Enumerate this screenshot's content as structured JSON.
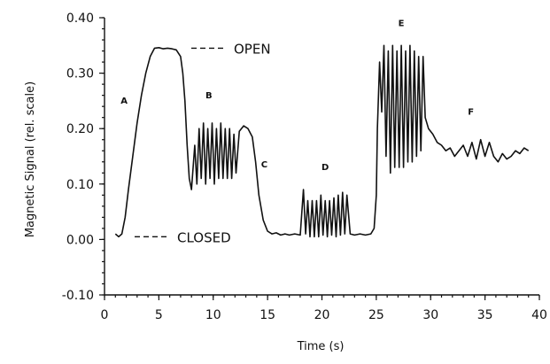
{
  "chart_data": {
    "type": "line",
    "title": "",
    "xlabel": "Time (s)",
    "ylabel": "Magnetic Signal (rel. scale)",
    "xlim": [
      0,
      40
    ],
    "ylim": [
      -0.1,
      0.4
    ],
    "x_ticks": [
      0,
      5,
      10,
      15,
      20,
      25,
      30,
      35,
      40
    ],
    "x_tick_labels": [
      "0",
      "5",
      "10",
      "15",
      "20",
      "25",
      "30",
      "35",
      "40"
    ],
    "y_ticks": [
      -0.1,
      0.0,
      0.1,
      0.2,
      0.3,
      0.4
    ],
    "y_tick_labels": [
      "-0.10",
      "0.00",
      "0.10",
      "0.20",
      "0.30",
      "0.40"
    ],
    "grid": false,
    "series": [
      {
        "x": [
          1.0,
          1.3,
          1.6,
          1.9,
          2.2,
          2.6,
          3.0,
          3.4,
          3.8,
          4.2,
          4.6,
          5.0,
          5.4,
          5.8,
          6.2,
          6.6,
          7.0,
          7.2,
          7.4,
          7.6,
          7.8,
          8.0,
          8.3,
          8.5,
          8.7,
          8.9,
          9.1,
          9.3,
          9.5,
          9.7,
          9.9,
          10.1,
          10.3,
          10.5,
          10.7,
          10.9,
          11.1,
          11.3,
          11.5,
          11.7,
          11.9,
          12.1,
          12.4,
          12.8,
          13.2,
          13.6,
          13.9,
          14.2,
          14.6,
          15.0,
          15.4,
          15.8,
          16.2,
          16.6,
          17.0,
          17.5,
          18.0,
          18.3,
          18.5,
          18.7,
          18.9,
          19.1,
          19.3,
          19.5,
          19.7,
          19.9,
          20.1,
          20.3,
          20.5,
          20.7,
          20.9,
          21.1,
          21.3,
          21.5,
          21.7,
          21.9,
          22.1,
          22.3,
          22.6,
          23.0,
          23.5,
          24.0,
          24.5,
          24.8,
          25.0,
          25.1,
          25.3,
          25.5,
          25.7,
          25.9,
          26.1,
          26.3,
          26.5,
          26.7,
          26.9,
          27.1,
          27.3,
          27.5,
          27.7,
          27.9,
          28.1,
          28.3,
          28.5,
          28.7,
          28.9,
          29.1,
          29.3,
          29.5,
          29.8,
          30.2,
          30.6,
          31.0,
          31.4,
          31.8,
          32.2,
          32.6,
          33.0,
          33.4,
          33.8,
          34.2,
          34.6,
          35.0,
          35.4,
          35.8,
          36.2,
          36.6,
          37.0,
          37.4,
          37.8,
          38.2,
          38.6,
          39.0
        ],
        "y": [
          0.01,
          0.005,
          0.01,
          0.04,
          0.09,
          0.15,
          0.21,
          0.26,
          0.3,
          0.33,
          0.345,
          0.346,
          0.344,
          0.345,
          0.344,
          0.342,
          0.33,
          0.3,
          0.25,
          0.17,
          0.11,
          0.09,
          0.17,
          0.1,
          0.2,
          0.11,
          0.21,
          0.1,
          0.2,
          0.11,
          0.21,
          0.1,
          0.2,
          0.11,
          0.21,
          0.11,
          0.2,
          0.11,
          0.2,
          0.11,
          0.19,
          0.12,
          0.195,
          0.205,
          0.2,
          0.185,
          0.14,
          0.08,
          0.035,
          0.015,
          0.01,
          0.012,
          0.008,
          0.01,
          0.008,
          0.01,
          0.008,
          0.09,
          0.01,
          0.07,
          0.005,
          0.07,
          0.005,
          0.07,
          0.005,
          0.08,
          0.008,
          0.07,
          0.005,
          0.07,
          0.008,
          0.075,
          0.005,
          0.08,
          0.008,
          0.085,
          0.01,
          0.08,
          0.01,
          0.008,
          0.01,
          0.008,
          0.01,
          0.02,
          0.08,
          0.2,
          0.32,
          0.23,
          0.35,
          0.15,
          0.34,
          0.12,
          0.35,
          0.13,
          0.34,
          0.13,
          0.35,
          0.13,
          0.34,
          0.14,
          0.35,
          0.14,
          0.34,
          0.15,
          0.33,
          0.16,
          0.33,
          0.22,
          0.2,
          0.19,
          0.175,
          0.17,
          0.16,
          0.165,
          0.15,
          0.16,
          0.17,
          0.15,
          0.175,
          0.145,
          0.18,
          0.15,
          0.175,
          0.15,
          0.14,
          0.155,
          0.145,
          0.15,
          0.16,
          0.155,
          0.165,
          0.16
        ]
      }
    ],
    "annotations": [
      {
        "text": "A",
        "x": 1.8,
        "y": 0.245
      },
      {
        "text": "B",
        "x": 9.6,
        "y": 0.255
      },
      {
        "text": "C",
        "x": 14.7,
        "y": 0.13
      },
      {
        "text": "D",
        "x": 20.3,
        "y": 0.125
      },
      {
        "text": "E",
        "x": 27.3,
        "y": 0.385
      },
      {
        "text": "F",
        "x": 33.7,
        "y": 0.225
      }
    ],
    "legend": [
      {
        "label": "OPEN",
        "style": "dashed",
        "y": 0.345
      },
      {
        "label": "CLOSED",
        "style": "dashed",
        "y": 0.005
      }
    ]
  }
}
